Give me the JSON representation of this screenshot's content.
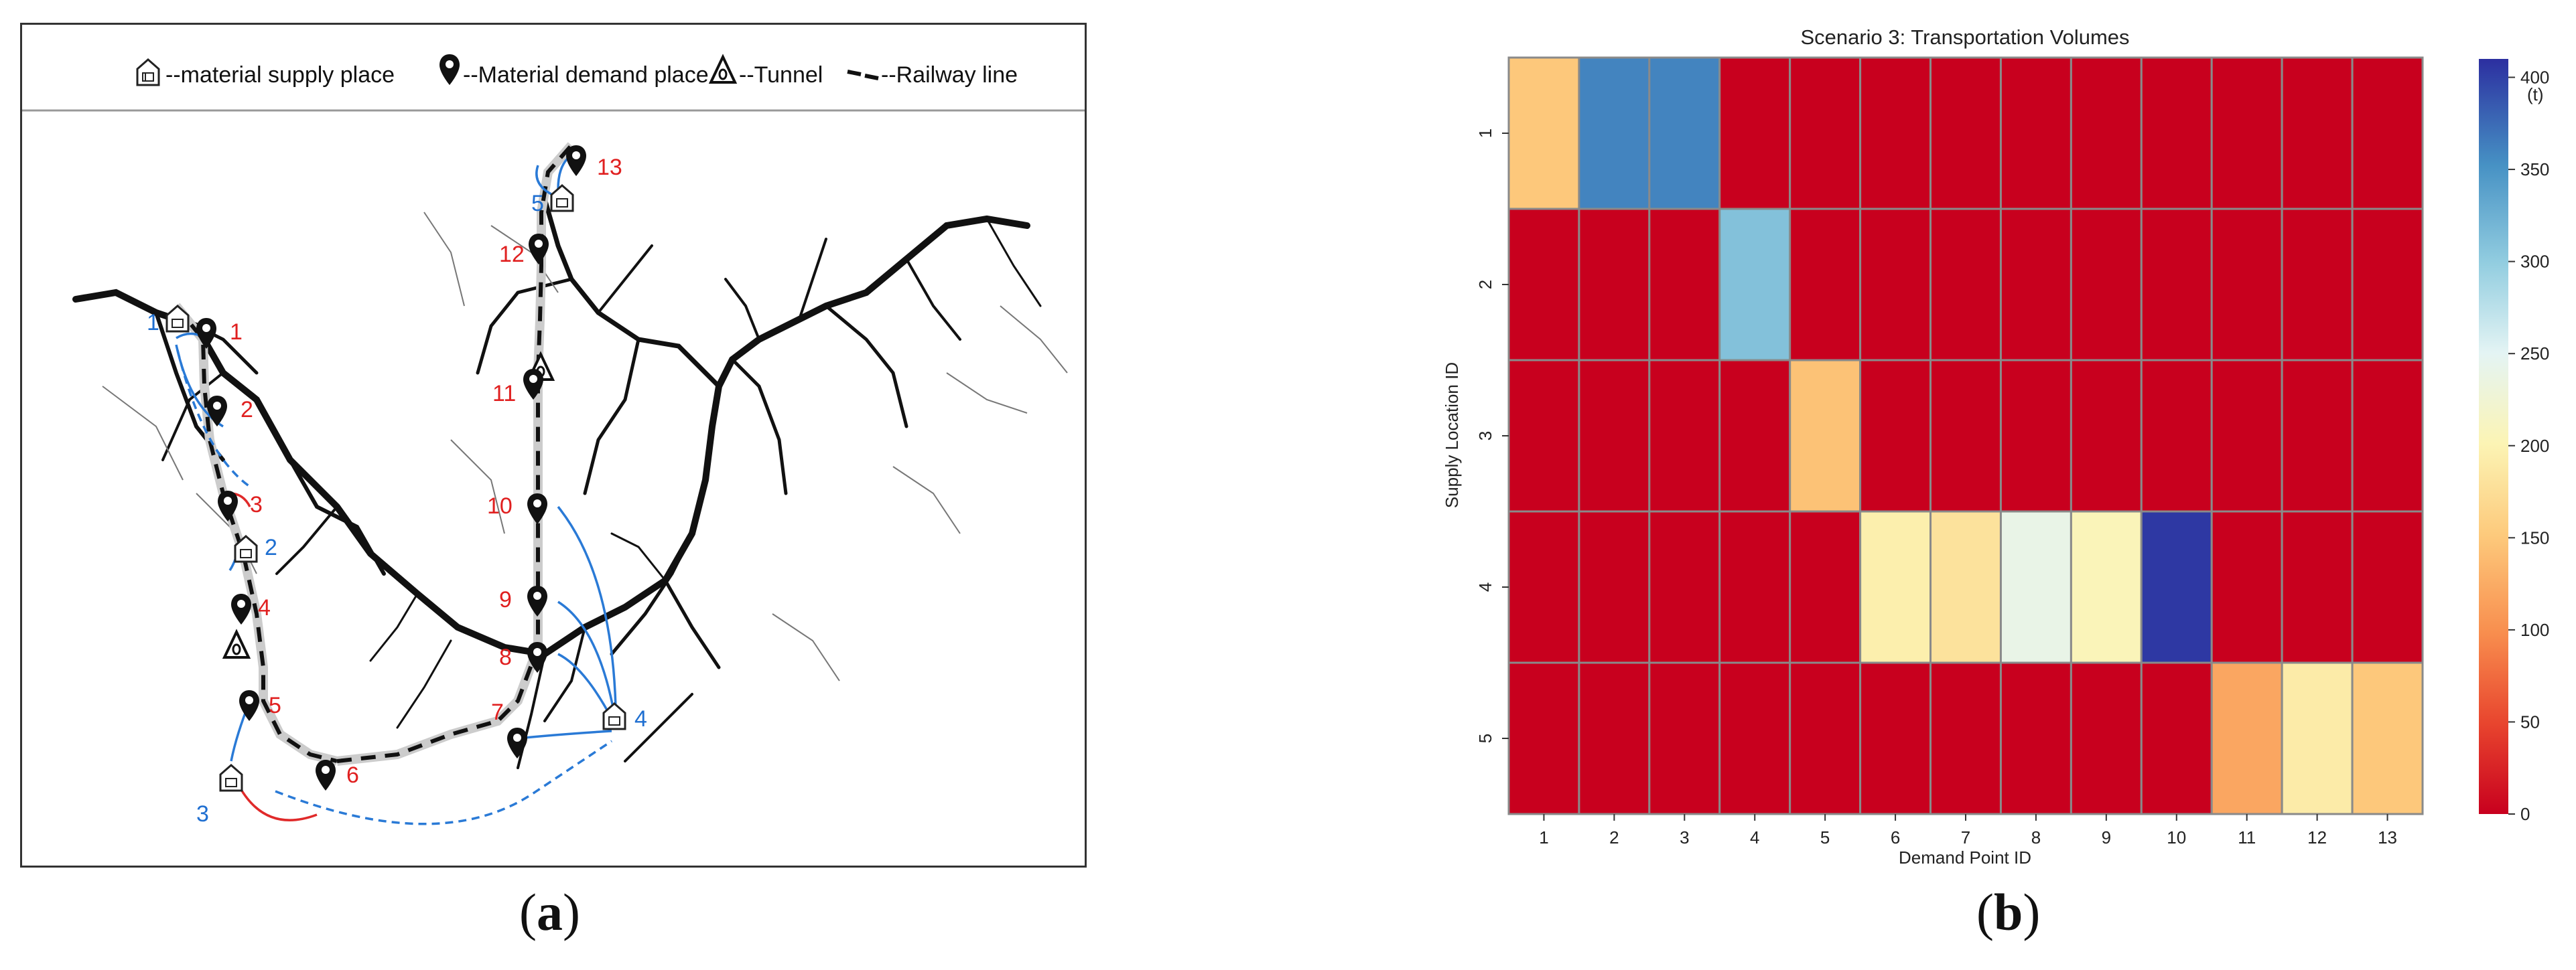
{
  "figure": {
    "label_a": "a",
    "label_b": "b"
  },
  "map": {
    "legend": {
      "supply": "--material supply place",
      "demand": "--Material demand place",
      "tunnel": "--Tunnel",
      "railway": "--Railway line"
    },
    "supply_labels": [
      "1",
      "2",
      "3",
      "4",
      "5"
    ],
    "demand_labels": [
      "1",
      "2",
      "3",
      "4",
      "5",
      "6",
      "7",
      "8",
      "9",
      "10",
      "11",
      "12",
      "13"
    ],
    "colors": {
      "supply_label": "#1f6fd1",
      "demand_label": "#e02020",
      "arrow_blue": "#2a7ad6",
      "arrow_red": "#e02a2a"
    }
  },
  "chart_data": {
    "type": "heatmap",
    "title": "Scenario 3: Transportation Volumes",
    "xlabel": "Demand Point ID",
    "ylabel": "Supply Location ID",
    "x": [
      "1",
      "2",
      "3",
      "4",
      "5",
      "6",
      "7",
      "8",
      "9",
      "10",
      "11",
      "12",
      "13"
    ],
    "y": [
      "1",
      "2",
      "3",
      "4",
      "5"
    ],
    "values": [
      [
        150,
        360,
        360,
        0,
        0,
        0,
        0,
        0,
        0,
        0,
        0,
        0,
        0
      ],
      [
        0,
        0,
        0,
        310,
        0,
        0,
        0,
        0,
        0,
        0,
        0,
        0,
        0
      ],
      [
        0,
        0,
        0,
        0,
        145,
        0,
        0,
        0,
        0,
        0,
        0,
        0,
        0
      ],
      [
        0,
        0,
        0,
        0,
        0,
        195,
        180,
        240,
        205,
        405,
        0,
        0,
        0
      ],
      [
        0,
        0,
        0,
        0,
        0,
        0,
        0,
        0,
        0,
        0,
        120,
        190,
        150
      ]
    ],
    "colorbar": {
      "min": 0,
      "max": 410,
      "ticks": [
        0,
        50,
        100,
        150,
        200,
        250,
        300,
        350,
        400
      ],
      "unit": "(t)"
    },
    "colormap": "RdYlBu"
  }
}
